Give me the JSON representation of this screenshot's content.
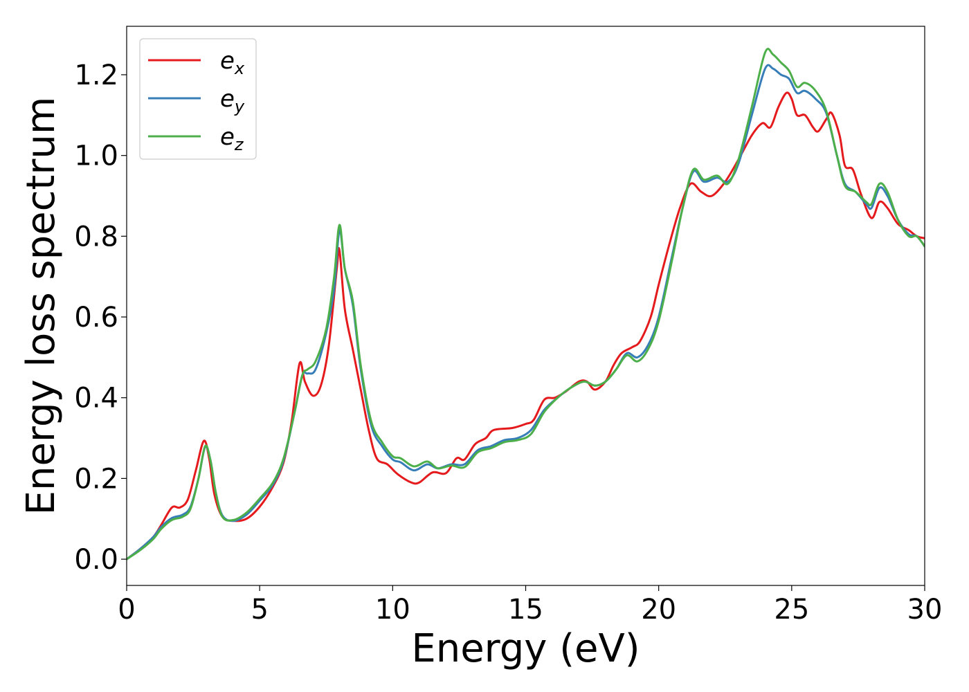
{
  "chart_data": {
    "type": "line",
    "title": "",
    "xlabel": "Energy (eV)",
    "ylabel": "Energy loss spectrum",
    "xlim": [
      0,
      30
    ],
    "ylim": [
      -0.065,
      1.32
    ],
    "xticks": [
      0,
      5,
      10,
      15,
      20,
      25,
      30
    ],
    "xtick_labels": [
      "0",
      "5",
      "10",
      "15",
      "20",
      "25",
      "30"
    ],
    "yticks": [
      0.0,
      0.2,
      0.4,
      0.6,
      0.8,
      1.0,
      1.2
    ],
    "ytick_labels": [
      "0.0",
      "0.2",
      "0.4",
      "0.6",
      "0.8",
      "1.0",
      "1.2"
    ],
    "grid": false,
    "legend_position": "top-left",
    "series": [
      {
        "name": "e_x",
        "legend_base": "e",
        "legend_sub": "x",
        "color": "#e41a1c",
        "points": [
          [
            0,
            0.0
          ],
          [
            0.5,
            0.025
          ],
          [
            1.0,
            0.055
          ],
          [
            1.3,
            0.085
          ],
          [
            1.7,
            0.128
          ],
          [
            2.0,
            0.128
          ],
          [
            2.3,
            0.148
          ],
          [
            2.6,
            0.22
          ],
          [
            2.9,
            0.293
          ],
          [
            3.1,
            0.25
          ],
          [
            3.3,
            0.16
          ],
          [
            3.6,
            0.105
          ],
          [
            4.0,
            0.095
          ],
          [
            4.5,
            0.1
          ],
          [
            5.0,
            0.13
          ],
          [
            5.5,
            0.18
          ],
          [
            5.9,
            0.24
          ],
          [
            6.2,
            0.34
          ],
          [
            6.5,
            0.485
          ],
          [
            6.7,
            0.44
          ],
          [
            7.0,
            0.405
          ],
          [
            7.3,
            0.43
          ],
          [
            7.6,
            0.53
          ],
          [
            7.9,
            0.72
          ],
          [
            8.0,
            0.765
          ],
          [
            8.2,
            0.62
          ],
          [
            8.5,
            0.52
          ],
          [
            8.8,
            0.42
          ],
          [
            9.1,
            0.32
          ],
          [
            9.4,
            0.25
          ],
          [
            9.8,
            0.235
          ],
          [
            10.2,
            0.21
          ],
          [
            10.7,
            0.19
          ],
          [
            11.0,
            0.19
          ],
          [
            11.5,
            0.215
          ],
          [
            12.0,
            0.213
          ],
          [
            12.4,
            0.25
          ],
          [
            12.7,
            0.247
          ],
          [
            13.1,
            0.285
          ],
          [
            13.5,
            0.3
          ],
          [
            13.8,
            0.32
          ],
          [
            14.5,
            0.325
          ],
          [
            15.0,
            0.335
          ],
          [
            15.3,
            0.345
          ],
          [
            15.7,
            0.395
          ],
          [
            16.1,
            0.4
          ],
          [
            16.5,
            0.415
          ],
          [
            17.0,
            0.44
          ],
          [
            17.3,
            0.44
          ],
          [
            17.6,
            0.42
          ],
          [
            18.0,
            0.44
          ],
          [
            18.3,
            0.48
          ],
          [
            18.6,
            0.51
          ],
          [
            19.0,
            0.525
          ],
          [
            19.3,
            0.54
          ],
          [
            19.7,
            0.6
          ],
          [
            20.0,
            0.68
          ],
          [
            20.4,
            0.78
          ],
          [
            20.8,
            0.87
          ],
          [
            21.2,
            0.93
          ],
          [
            21.6,
            0.91
          ],
          [
            22.0,
            0.9
          ],
          [
            22.5,
            0.935
          ],
          [
            23.0,
            0.99
          ],
          [
            23.5,
            1.05
          ],
          [
            23.9,
            1.08
          ],
          [
            24.2,
            1.07
          ],
          [
            24.5,
            1.12
          ],
          [
            24.8,
            1.155
          ],
          [
            25.0,
            1.14
          ],
          [
            25.2,
            1.1
          ],
          [
            25.5,
            1.1
          ],
          [
            25.8,
            1.07
          ],
          [
            26.0,
            1.06
          ],
          [
            26.3,
            1.09
          ],
          [
            26.5,
            1.105
          ],
          [
            26.8,
            1.05
          ],
          [
            27.0,
            0.975
          ],
          [
            27.3,
            0.965
          ],
          [
            27.6,
            0.905
          ],
          [
            28.0,
            0.845
          ],
          [
            28.3,
            0.885
          ],
          [
            28.6,
            0.87
          ],
          [
            29.0,
            0.83
          ],
          [
            29.4,
            0.815
          ],
          [
            29.7,
            0.8
          ],
          [
            30.0,
            0.795
          ]
        ]
      },
      {
        "name": "e_y",
        "legend_base": "e",
        "legend_sub": "y",
        "color": "#377eb8",
        "points": [
          [
            0,
            0.0
          ],
          [
            0.5,
            0.025
          ],
          [
            1.0,
            0.055
          ],
          [
            1.3,
            0.08
          ],
          [
            1.7,
            0.102
          ],
          [
            2.1,
            0.11
          ],
          [
            2.4,
            0.13
          ],
          [
            2.7,
            0.2
          ],
          [
            2.95,
            0.278
          ],
          [
            3.15,
            0.245
          ],
          [
            3.35,
            0.165
          ],
          [
            3.6,
            0.108
          ],
          [
            4.0,
            0.095
          ],
          [
            4.5,
            0.11
          ],
          [
            5.0,
            0.145
          ],
          [
            5.5,
            0.185
          ],
          [
            5.9,
            0.245
          ],
          [
            6.3,
            0.36
          ],
          [
            6.6,
            0.455
          ],
          [
            6.8,
            0.46
          ],
          [
            7.1,
            0.47
          ],
          [
            7.5,
            0.56
          ],
          [
            7.8,
            0.67
          ],
          [
            8.0,
            0.815
          ],
          [
            8.2,
            0.72
          ],
          [
            8.5,
            0.63
          ],
          [
            8.8,
            0.47
          ],
          [
            9.2,
            0.33
          ],
          [
            9.6,
            0.28
          ],
          [
            10.0,
            0.247
          ],
          [
            10.3,
            0.24
          ],
          [
            10.8,
            0.22
          ],
          [
            11.3,
            0.235
          ],
          [
            11.7,
            0.225
          ],
          [
            12.2,
            0.235
          ],
          [
            12.7,
            0.235
          ],
          [
            13.2,
            0.27
          ],
          [
            13.7,
            0.28
          ],
          [
            14.2,
            0.295
          ],
          [
            14.7,
            0.3
          ],
          [
            15.2,
            0.32
          ],
          [
            15.7,
            0.37
          ],
          [
            16.2,
            0.4
          ],
          [
            16.7,
            0.425
          ],
          [
            17.2,
            0.44
          ],
          [
            17.6,
            0.43
          ],
          [
            18.0,
            0.44
          ],
          [
            18.4,
            0.47
          ],
          [
            18.8,
            0.51
          ],
          [
            19.2,
            0.5
          ],
          [
            19.6,
            0.53
          ],
          [
            20.0,
            0.6
          ],
          [
            20.5,
            0.75
          ],
          [
            20.9,
            0.87
          ],
          [
            21.3,
            0.96
          ],
          [
            21.7,
            0.935
          ],
          [
            22.2,
            0.945
          ],
          [
            22.6,
            0.935
          ],
          [
            23.0,
            0.98
          ],
          [
            23.5,
            1.1
          ],
          [
            24.0,
            1.215
          ],
          [
            24.3,
            1.215
          ],
          [
            24.6,
            1.2
          ],
          [
            24.9,
            1.19
          ],
          [
            25.2,
            1.155
          ],
          [
            25.5,
            1.16
          ],
          [
            25.9,
            1.14
          ],
          [
            26.3,
            1.105
          ],
          [
            26.7,
            1.0
          ],
          [
            27.0,
            0.93
          ],
          [
            27.4,
            0.91
          ],
          [
            27.8,
            0.88
          ],
          [
            28.0,
            0.87
          ],
          [
            28.3,
            0.92
          ],
          [
            28.6,
            0.9
          ],
          [
            29.0,
            0.84
          ],
          [
            29.4,
            0.805
          ],
          [
            29.7,
            0.8
          ],
          [
            30.0,
            0.775
          ]
        ]
      },
      {
        "name": "e_z",
        "legend_base": "e",
        "legend_sub": "z",
        "color": "#4daf4a",
        "points": [
          [
            0,
            0.0
          ],
          [
            0.5,
            0.022
          ],
          [
            1.0,
            0.05
          ],
          [
            1.3,
            0.075
          ],
          [
            1.7,
            0.097
          ],
          [
            2.1,
            0.105
          ],
          [
            2.4,
            0.125
          ],
          [
            2.7,
            0.2
          ],
          [
            2.95,
            0.28
          ],
          [
            3.15,
            0.245
          ],
          [
            3.35,
            0.165
          ],
          [
            3.6,
            0.105
          ],
          [
            4.0,
            0.097
          ],
          [
            4.5,
            0.115
          ],
          [
            5.0,
            0.15
          ],
          [
            5.5,
            0.19
          ],
          [
            5.9,
            0.25
          ],
          [
            6.3,
            0.36
          ],
          [
            6.6,
            0.455
          ],
          [
            6.8,
            0.47
          ],
          [
            7.1,
            0.49
          ],
          [
            7.5,
            0.57
          ],
          [
            7.8,
            0.7
          ],
          [
            8.0,
            0.828
          ],
          [
            8.2,
            0.72
          ],
          [
            8.5,
            0.64
          ],
          [
            8.8,
            0.48
          ],
          [
            9.2,
            0.34
          ],
          [
            9.6,
            0.29
          ],
          [
            10.0,
            0.255
          ],
          [
            10.3,
            0.25
          ],
          [
            10.8,
            0.23
          ],
          [
            11.3,
            0.242
          ],
          [
            11.7,
            0.225
          ],
          [
            12.2,
            0.232
          ],
          [
            12.7,
            0.228
          ],
          [
            13.2,
            0.265
          ],
          [
            13.7,
            0.275
          ],
          [
            14.2,
            0.29
          ],
          [
            14.7,
            0.295
          ],
          [
            15.2,
            0.31
          ],
          [
            15.7,
            0.365
          ],
          [
            16.2,
            0.4
          ],
          [
            16.7,
            0.425
          ],
          [
            17.2,
            0.44
          ],
          [
            17.6,
            0.43
          ],
          [
            18.0,
            0.44
          ],
          [
            18.4,
            0.47
          ],
          [
            18.8,
            0.505
          ],
          [
            19.2,
            0.49
          ],
          [
            19.6,
            0.52
          ],
          [
            20.0,
            0.59
          ],
          [
            20.5,
            0.74
          ],
          [
            20.9,
            0.87
          ],
          [
            21.3,
            0.965
          ],
          [
            21.7,
            0.94
          ],
          [
            22.2,
            0.95
          ],
          [
            22.6,
            0.93
          ],
          [
            23.0,
            0.99
          ],
          [
            23.5,
            1.12
          ],
          [
            24.0,
            1.255
          ],
          [
            24.3,
            1.25
          ],
          [
            24.6,
            1.23
          ],
          [
            24.9,
            1.21
          ],
          [
            25.2,
            1.17
          ],
          [
            25.5,
            1.18
          ],
          [
            25.9,
            1.16
          ],
          [
            26.3,
            1.11
          ],
          [
            26.7,
            1.0
          ],
          [
            27.0,
            0.925
          ],
          [
            27.4,
            0.91
          ],
          [
            27.8,
            0.885
          ],
          [
            28.0,
            0.88
          ],
          [
            28.3,
            0.93
          ],
          [
            28.6,
            0.91
          ],
          [
            29.0,
            0.84
          ],
          [
            29.4,
            0.8
          ],
          [
            29.7,
            0.8
          ],
          [
            30.0,
            0.775
          ]
        ]
      }
    ]
  }
}
